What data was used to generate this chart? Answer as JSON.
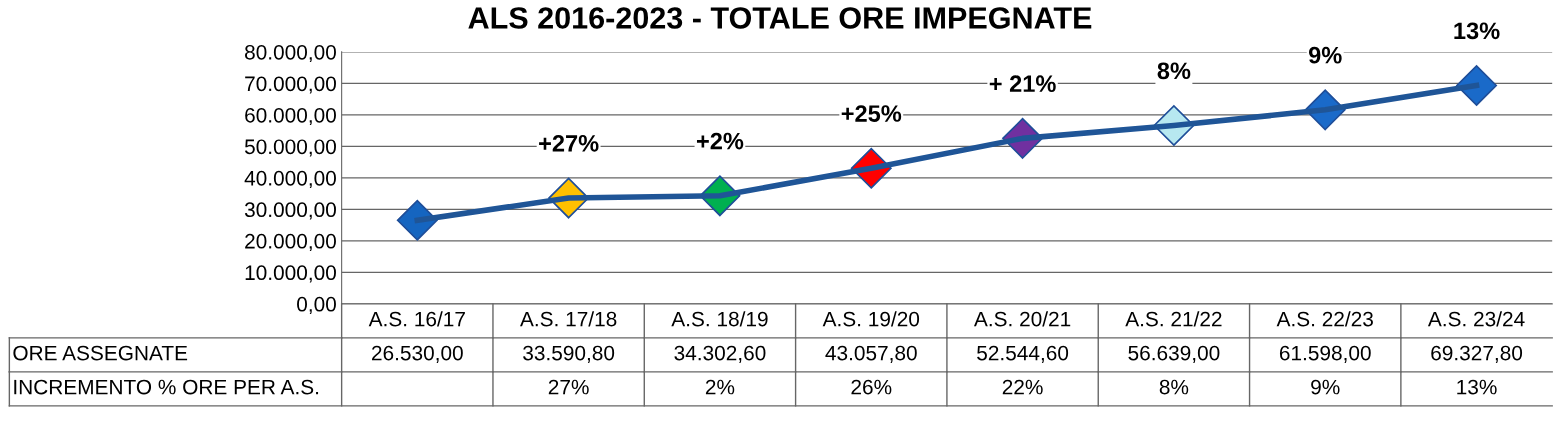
{
  "chart_data": {
    "type": "line",
    "title": "ALS 2016-2023 - TOTALE ORE IMPEGNATE",
    "categories": [
      "A.S. 16/17",
      "A.S. 17/18",
      "A.S. 18/19",
      "A.S. 19/20",
      "A.S. 20/21",
      "A.S. 21/22",
      "A.S. 22/23",
      "A.S. 23/24"
    ],
    "series": [
      {
        "name": "ORE ASSEGNATE",
        "color": "#1f5597",
        "values": [
          26530.0,
          33590.8,
          34302.6,
          43057.8,
          52544.6,
          56639.0,
          61598.0,
          69327.8
        ],
        "colors": [
          "#1565c0",
          "#ffc000",
          "#00b050",
          "#ff0000",
          "#7030a0",
          "#b7e8f0",
          "#1a6ac9",
          "#1a6ac9"
        ],
        "value_labels": [
          "26.530,00",
          "33.590,80",
          "34.302,60",
          "43.057,80",
          "52.544,60",
          "56.639,00",
          "61.598,00",
          "69.327,80"
        ]
      }
    ],
    "ylim": [
      0,
      80000
    ],
    "yticks": [
      {
        "value": 0,
        "label": "0,00"
      },
      {
        "value": 10000,
        "label": "10.000,00"
      },
      {
        "value": 20000,
        "label": "20.000,00"
      },
      {
        "value": 30000,
        "label": "30.000,00"
      },
      {
        "value": 40000,
        "label": "40.000,00"
      },
      {
        "value": 50000,
        "label": "50.000,00"
      },
      {
        "value": 60000,
        "label": "60.000,00"
      },
      {
        "value": 70000,
        "label": "70.000,00"
      },
      {
        "value": 80000,
        "label": "80.000,00"
      }
    ],
    "grid": "y",
    "marker": "diamond",
    "line_style": "solid",
    "legend": false,
    "annotations": [
      {
        "text": "+27%",
        "x": "A.S. 17/18",
        "y": 33590.8
      },
      {
        "text": "+2%",
        "x": "A.S. 18/19",
        "y": 34302.6
      },
      {
        "text": "+25%",
        "x": "A.S. 19/20",
        "y": 43057.8
      },
      {
        "text": "+ 21%",
        "x": "A.S. 20/21",
        "y": 52544.6
      },
      {
        "text": "8%",
        "x": "A.S. 21/22",
        "y": 56639.0
      },
      {
        "text": "9%",
        "x": "A.S. 22/23",
        "y": 61598.0
      },
      {
        "text": "13%",
        "x": "A.S. 23/24",
        "y": 69327.8
      },
      "INCREMENTO % ORE PER A.S.",
      "27%",
      "2%",
      "26%",
      "22%",
      "8%",
      "9%",
      "13%"
    ]
  }
}
